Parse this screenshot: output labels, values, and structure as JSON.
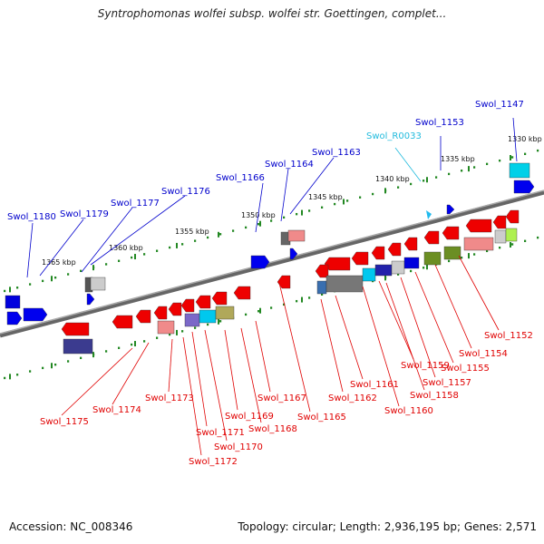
{
  "title": "Syntrophomonas wolfei subsp. wolfei str. Goettingen, complet...",
  "footer": {
    "accession": "Accession: NC_008346",
    "topology": "Topology: circular; Length: 2,936,195 bp; Genes: 2,571"
  },
  "colors": {
    "forward_label": "#0000cc",
    "reverse_label": "#e00000",
    "rna_label": "#22bbdd",
    "backbone": "#777777",
    "tick": "#228822"
  },
  "kbp_labels": [
    "1330 kbp",
    "1335 kbp",
    "1340 kbp",
    "1345 kbp",
    "1350 kbp",
    "1355 kbp",
    "1360 kbp",
    "1365 kbp"
  ],
  "forward_genes": [
    "Swol_1147",
    "Swol_1153",
    "Swol_R0033",
    "Swol_1163",
    "Swol_1164",
    "Swol_1166",
    "Swol_1176",
    "Swol_1177",
    "Swol_1179",
    "Swol_1180"
  ],
  "reverse_genes": [
    "Swol_1152",
    "Swol_1154",
    "Swol_1155",
    "Swol_1157",
    "Swol_1158",
    "Swol_1159",
    "Swol_1160",
    "Swol_1161",
    "Swol_1162",
    "Swol_1165",
    "Swol_1167",
    "Swol_1168",
    "Swol_1169",
    "Swol_1170",
    "Swol_1171",
    "Swol_1172",
    "Swol_1173",
    "Swol_1174",
    "Swol_1175"
  ]
}
